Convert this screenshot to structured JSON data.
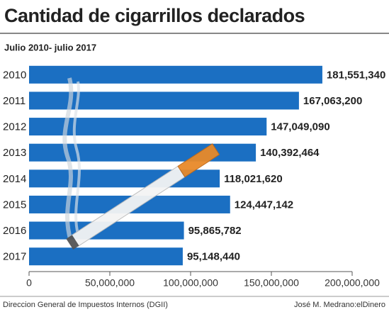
{
  "chart_data": {
    "type": "bar",
    "orientation": "horizontal",
    "title": "Cantidad de cigarrillos declarados",
    "subtitle": "Julio 2010- julio 2017",
    "categories": [
      "2010",
      "2011",
      "2012",
      "2013",
      "2014",
      "2015",
      "2016",
      "2017"
    ],
    "values": [
      181551340,
      167063200,
      147049090,
      140392464,
      118021620,
      124447142,
      95865782,
      95148440
    ],
    "value_labels": [
      "181,551,340",
      "167,063,200",
      "147,049,090",
      "140,392,464",
      "118,021,620",
      "124,447,142",
      "95,865,782",
      "95,148,440"
    ],
    "color": "#1b6fc2",
    "xlim": [
      0,
      200000000
    ],
    "xticks": [
      0,
      {
        "value": 50000000,
        "label": "50,000,000"
      },
      {
        "value": 100000000,
        "label": "100,000,000"
      },
      {
        "value": 150000000,
        "label": "150,000,000"
      },
      {
        "value": 200000000,
        "label": "200,000,000"
      }
    ],
    "source": "Direccion General de Impuestos Internos (DGII)",
    "credit": "José M. Medrano:elDinero"
  }
}
